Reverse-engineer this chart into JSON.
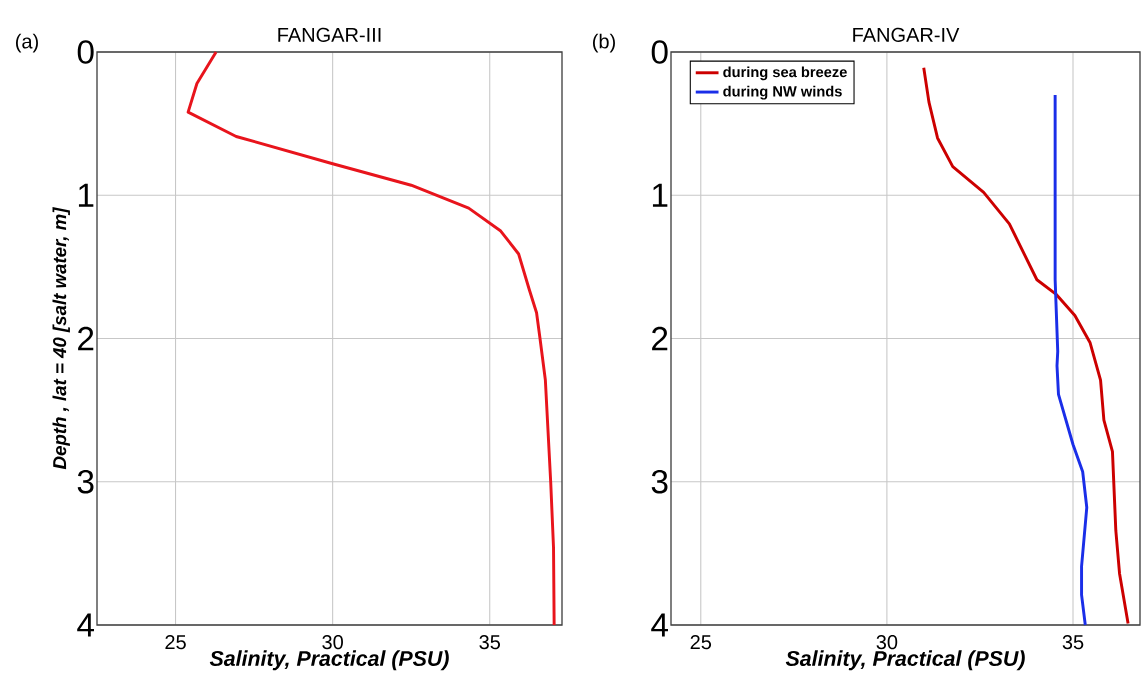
{
  "chart_data": [
    {
      "type": "line",
      "title": "FANGAR-III",
      "xlabel": "Salinity, Practical  (PSU)",
      "ylabel": "Depth , lat = 40 [salt water, m]",
      "annotations": [
        "(a)"
      ],
      "xlim": [
        22.5,
        37.3
      ],
      "ylim": [
        4,
        0
      ],
      "xticks": [
        25,
        30,
        35
      ],
      "yticks": [
        0,
        1,
        2,
        3,
        4
      ],
      "grid": true,
      "legend": false,
      "series": [
        {
          "color": "#e8141c",
          "x": [
            26.29,
            25.68,
            25.4,
            26.93,
            30.0,
            32.5,
            34.33,
            35.35,
            35.92,
            36.26,
            36.49,
            36.6,
            36.77,
            36.94,
            37.03,
            37.05
          ],
          "values": [
            0,
            0.22,
            0.42,
            0.59,
            0.78,
            0.93,
            1.09,
            1.25,
            1.41,
            1.66,
            1.82,
            2.0,
            2.29,
            3.0,
            3.46,
            4.0
          ]
        }
      ]
    },
    {
      "type": "line",
      "title": "FANGAR-IV",
      "xlabel": "Salinity, Practical  (PSU)",
      "annotations": [
        "(b)"
      ],
      "xlim": [
        24.2,
        36.8
      ],
      "ylim": [
        4,
        0
      ],
      "xticks": [
        25,
        30,
        35
      ],
      "yticks": [
        0,
        1,
        2,
        3,
        4
      ],
      "grid": true,
      "legend": "top left",
      "series": [
        {
          "name": "during sea breeze",
          "color": "#cc0000",
          "x": [
            30.99,
            31.13,
            31.36,
            31.77,
            32.6,
            33.29,
            34.03,
            34.54,
            35.05,
            35.46,
            35.74,
            35.83,
            36.06,
            36.15,
            36.25,
            36.48
          ],
          "values": [
            0.11,
            0.35,
            0.6,
            0.8,
            0.98,
            1.2,
            1.59,
            1.69,
            1.84,
            2.03,
            2.29,
            2.57,
            2.79,
            3.34,
            3.64,
            3.99
          ]
        },
        {
          "name": "during NW winds",
          "color": "#1a2ee8",
          "x": [
            34.52,
            34.52,
            34.59,
            34.57,
            34.61,
            35.0,
            35.26,
            35.37,
            35.23,
            35.23,
            35.33
          ],
          "values": [
            0.3,
            1.59,
            2.09,
            2.19,
            2.39,
            2.74,
            2.93,
            3.18,
            3.59,
            3.79,
            4.0
          ]
        }
      ]
    }
  ]
}
